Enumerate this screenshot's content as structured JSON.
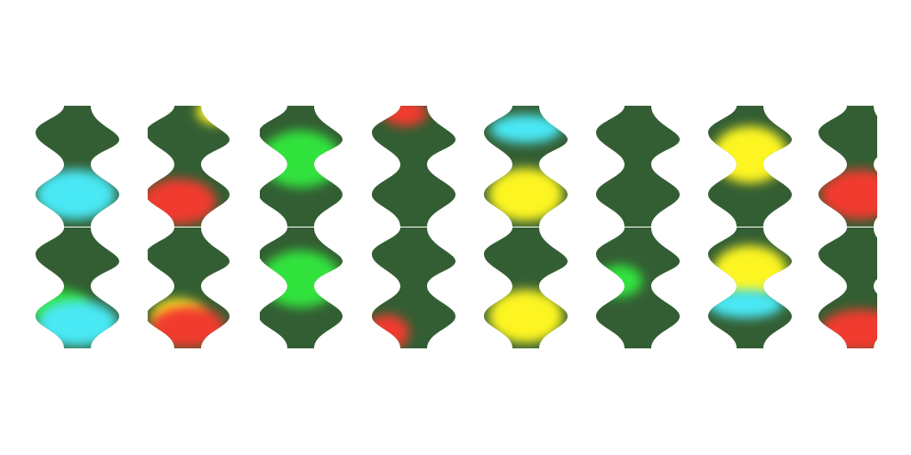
{
  "colors": {
    "background": "#ffffff",
    "band": "#335e33",
    "cyan": "#4ae8f5",
    "yellow": "#fdf523",
    "green": "#33e33c",
    "red": "#f13b2f"
  },
  "grid": {
    "columns": 8,
    "rows": 2
  },
  "tiles": [
    {
      "blobs": [
        "cyan"
      ]
    },
    {
      "blobs": [
        "yellow",
        "red"
      ]
    },
    {
      "blobs": [
        "green"
      ]
    },
    {
      "blobs": [
        "red"
      ]
    },
    {
      "blobs": [
        "cyan",
        "yellow"
      ]
    },
    {
      "blobs": []
    },
    {
      "blobs": [
        "yellow"
      ]
    },
    {
      "blobs": [
        "red"
      ]
    },
    {
      "blobs": [
        "green",
        "cyan"
      ]
    },
    {
      "blobs": [
        "yellow",
        "red"
      ]
    },
    {
      "blobs": [
        "green"
      ]
    },
    {
      "blobs": [
        "red"
      ]
    },
    {
      "blobs": [
        "yellow"
      ]
    },
    {
      "blobs": [
        "green"
      ]
    },
    {
      "blobs": [
        "yellow",
        "cyan"
      ]
    },
    {
      "blobs": [
        "red"
      ]
    }
  ]
}
